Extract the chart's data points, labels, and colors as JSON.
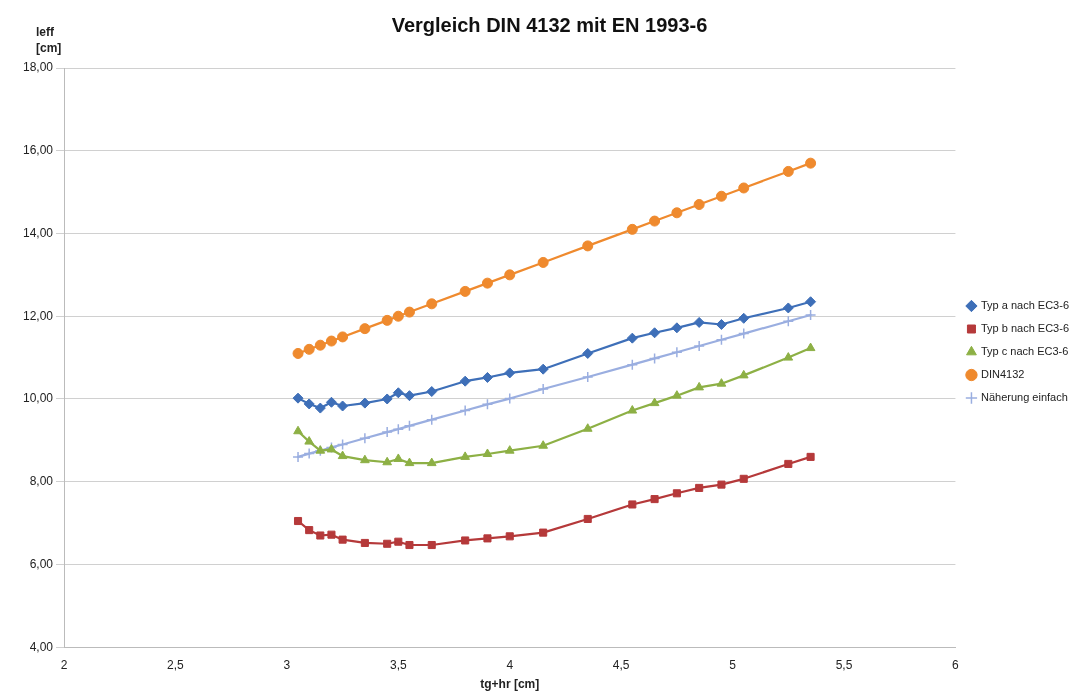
{
  "chart_data": {
    "type": "line",
    "title": "Vergleich DIN 4132 mit EN 1993-6",
    "xlabel": "tg+hr [cm]",
    "ylabel": "leff\n[cm]",
    "x": [
      3.05,
      3.1,
      3.15,
      3.2,
      3.25,
      3.35,
      3.45,
      3.5,
      3.55,
      3.65,
      3.8,
      3.9,
      4.0,
      4.15,
      4.35,
      4.55,
      4.65,
      4.75,
      4.85,
      4.95,
      5.05,
      5.25,
      5.35
    ],
    "series": [
      {
        "name": "Typ a nach EC3-6",
        "color": "#3e6fb8",
        "marker": "diamond",
        "values": [
          10.02,
          9.88,
          9.78,
          9.92,
          9.83,
          9.9,
          10.0,
          10.15,
          10.08,
          10.18,
          10.43,
          10.52,
          10.63,
          10.72,
          11.1,
          11.47,
          11.6,
          11.72,
          11.85,
          11.8,
          11.95,
          12.2,
          12.35
        ]
      },
      {
        "name": "Typ b nach EC3-6",
        "color": "#b5393a",
        "marker": "square",
        "values": [
          7.05,
          6.83,
          6.7,
          6.72,
          6.6,
          6.52,
          6.5,
          6.55,
          6.47,
          6.47,
          6.58,
          6.63,
          6.68,
          6.77,
          7.1,
          7.45,
          7.58,
          7.72,
          7.85,
          7.93,
          8.07,
          8.43,
          8.6
        ]
      },
      {
        "name": "Typ c nach EC3-6",
        "color": "#8db045",
        "marker": "triangle",
        "values": [
          9.22,
          8.97,
          8.75,
          8.78,
          8.62,
          8.52,
          8.47,
          8.55,
          8.45,
          8.45,
          8.6,
          8.67,
          8.75,
          8.87,
          9.28,
          9.72,
          9.9,
          10.08,
          10.28,
          10.37,
          10.57,
          11.0,
          11.23
        ]
      },
      {
        "name": "DIN4132",
        "color": "#ef8a2e",
        "marker": "circle",
        "values": [
          11.1,
          11.2,
          11.3,
          11.4,
          11.5,
          11.7,
          11.9,
          12.0,
          12.1,
          12.3,
          12.6,
          12.8,
          13.0,
          13.3,
          13.7,
          14.1,
          14.3,
          14.5,
          14.7,
          14.9,
          15.1,
          15.5,
          15.7
        ]
      },
      {
        "name": "Näherung einfach",
        "color": "#9aaee0",
        "marker": "cross",
        "values": [
          8.6,
          8.68,
          8.75,
          8.83,
          8.9,
          9.05,
          9.2,
          9.27,
          9.35,
          9.5,
          9.72,
          9.87,
          10.01,
          10.24,
          10.53,
          10.83,
          10.98,
          11.13,
          11.28,
          11.43,
          11.58,
          11.88,
          12.03
        ]
      }
    ],
    "xlim": [
      2,
      6
    ],
    "xticks": [
      2,
      {
        "value": 2.5,
        "label": "2,5"
      },
      3,
      {
        "value": 3.5,
        "label": "3,5"
      },
      4,
      {
        "value": 4.5,
        "label": "4,5"
      },
      5,
      {
        "value": 5.5,
        "label": "5,5"
      },
      6
    ],
    "ylim": [
      4,
      18
    ],
    "yticks": [
      {
        "value": 4,
        "label": "4,00"
      },
      {
        "value": 6,
        "label": "6,00"
      },
      {
        "value": 8,
        "label": "8,00"
      },
      {
        "value": 10,
        "label": "10,00"
      },
      {
        "value": 12,
        "label": "12,00"
      },
      {
        "value": 14,
        "label": "14,00"
      },
      {
        "value": 16,
        "label": "16,00"
      },
      {
        "value": 18,
        "label": "18,00"
      }
    ],
    "grid": "y",
    "legend": "right",
    "line_style": "solid"
  }
}
